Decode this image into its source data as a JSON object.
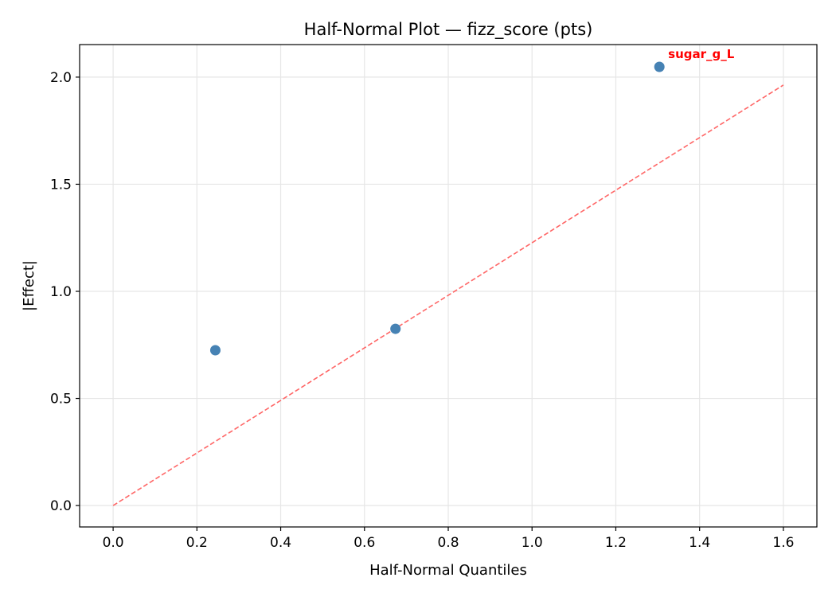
{
  "chart_data": {
    "type": "scatter",
    "title": "Half-Normal Plot — fizz_score (pts)",
    "xlabel": "Half-Normal Quantiles",
    "ylabel": "|Effect|",
    "xlim": [
      -0.08,
      1.68
    ],
    "ylim": [
      -0.1,
      2.152
    ],
    "xticks": [
      0.0,
      0.2,
      0.4,
      0.6,
      0.8,
      1.0,
      1.2,
      1.4,
      1.6
    ],
    "xtick_labels": [
      "0.0",
      "0.2",
      "0.4",
      "0.6",
      "0.8",
      "1.0",
      "1.2",
      "1.4",
      "1.6"
    ],
    "yticks": [
      0.0,
      0.5,
      1.0,
      1.5,
      2.0
    ],
    "ytick_labels": [
      "0.0",
      "0.5",
      "1.0",
      "1.5",
      "2.0"
    ],
    "grid": true,
    "points": [
      {
        "x": 0.244,
        "y": 0.725,
        "label": ""
      },
      {
        "x": 0.674,
        "y": 0.825,
        "label": ""
      },
      {
        "x": 1.304,
        "y": 2.048,
        "label": "sugar_g_L"
      }
    ],
    "reference_line": {
      "x": [
        0.0,
        1.6
      ],
      "y": [
        0.0,
        1.963
      ],
      "style": "dashed"
    },
    "colors": {
      "points": "#4682b4",
      "reference_line": "#ff6666",
      "annotation": "#ff0000",
      "grid": "#e6e6e6"
    }
  }
}
